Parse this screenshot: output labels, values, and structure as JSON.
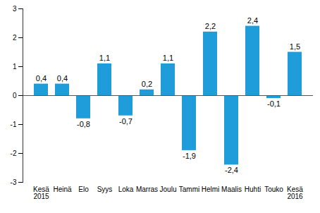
{
  "chart_data": {
    "type": "bar",
    "categories": [
      "Kesä\n2015",
      "Heinä",
      "Elo",
      "Syys",
      "Loka",
      "Marras",
      "Joulu",
      "Tammi",
      "Helmi",
      "Maalis",
      "Huhti",
      "Touko",
      "Kesä\n2016"
    ],
    "values": [
      0.4,
      0.4,
      -0.8,
      1.1,
      -0.7,
      0.2,
      1.1,
      -1.9,
      2.2,
      -2.4,
      2.4,
      -0.1,
      1.5
    ],
    "value_labels": [
      "0,4",
      "0,4",
      "-0,8",
      "1,1",
      "-0,7",
      "0,2",
      "1,1",
      "-1,9",
      "2,2",
      "-2,4",
      "2,4",
      "-0,1",
      "1,5"
    ],
    "color": "#1f9ddb",
    "ylim": [
      -3,
      3
    ],
    "yticks": [
      -3,
      -2,
      -1,
      0,
      1,
      2,
      3
    ],
    "grid": false,
    "data_labels": true
  }
}
